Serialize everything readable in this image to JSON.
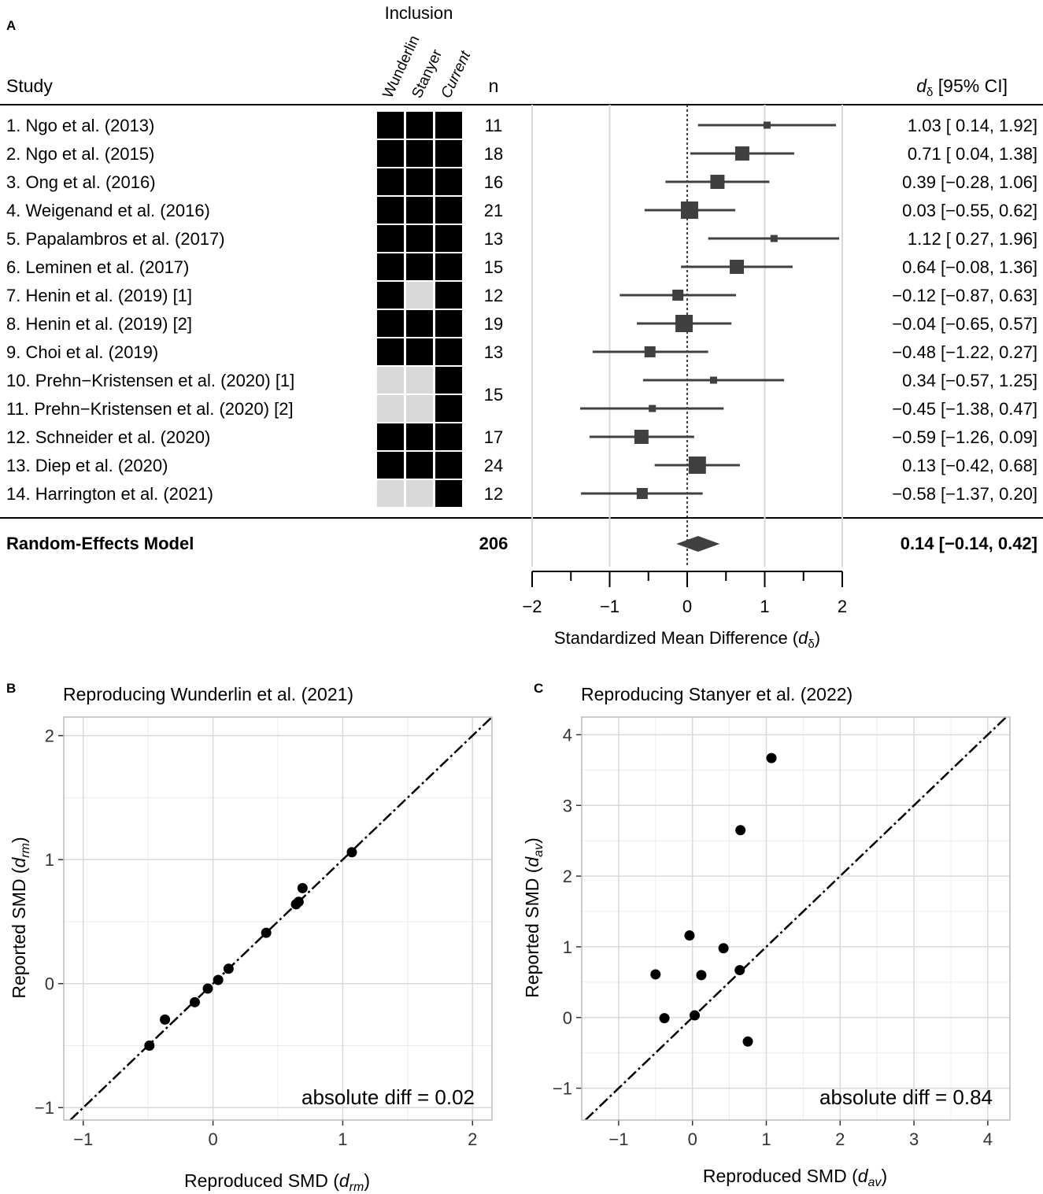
{
  "colors": {
    "mark": "#404040",
    "grid": "#d9d9d9",
    "excluded": "#d9d9d9",
    "included": "#000000"
  },
  "panel_a": {
    "label": "A",
    "inclusion_title": "Inclusion",
    "inclusion_columns": [
      "Wunderlin",
      "Stanyer",
      "Current"
    ],
    "study_header": "Study",
    "n_header": "n",
    "ci_header_main": "d",
    "ci_header_sub": "δ",
    "ci_header_rest": " [95% CI]",
    "model_label": "Random-Effects Model",
    "model_n": "206",
    "model_ci_text": "0.14 [−0.14, 0.42]",
    "xlabel_main": "Standardized Mean Difference (",
    "xlabel_sub": "δ",
    "xlabel_end": ")",
    "xlabel_var": "d",
    "ticks": [
      "−2",
      "−1",
      "0",
      "1",
      "2"
    ]
  },
  "chart_data": [
    {
      "type": "forest",
      "title": "",
      "xlabel": "Standardized Mean Difference (dδ)",
      "xlim": [
        -2,
        2
      ],
      "studies": [
        {
          "label": "1. Ngo et al. (2013)",
          "n": "11",
          "estimate": 1.03,
          "lower": 0.14,
          "upper": 1.92,
          "weight": 1,
          "inclusion": [
            1,
            1,
            1
          ],
          "ci_text": "1.03 [  0.14, 1.92]"
        },
        {
          "label": "2. Ngo et al. (2015)",
          "n": "18",
          "estimate": 0.71,
          "lower": 0.04,
          "upper": 1.38,
          "weight": 3,
          "inclusion": [
            1,
            1,
            1
          ],
          "ci_text": "0.71 [  0.04, 1.38]"
        },
        {
          "label": "3. Ong et al. (2016)",
          "n": "16",
          "estimate": 0.39,
          "lower": -0.28,
          "upper": 1.06,
          "weight": 3,
          "inclusion": [
            1,
            1,
            1
          ],
          "ci_text": "0.39 [−0.28, 1.06]"
        },
        {
          "label": "4. Weigenand et al. (2016)",
          "n": "21",
          "estimate": 0.03,
          "lower": -0.55,
          "upper": 0.62,
          "weight": 4,
          "inclusion": [
            1,
            1,
            1
          ],
          "ci_text": "0.03 [−0.55, 0.62]"
        },
        {
          "label": "5. Papalambros et al. (2017)",
          "n": "13",
          "estimate": 1.12,
          "lower": 0.27,
          "upper": 1.96,
          "weight": 1,
          "inclusion": [
            1,
            1,
            1
          ],
          "ci_text": "1.12 [  0.27, 1.96]"
        },
        {
          "label": "6. Leminen et al. (2017)",
          "n": "15",
          "estimate": 0.64,
          "lower": -0.08,
          "upper": 1.36,
          "weight": 3,
          "inclusion": [
            1,
            1,
            1
          ],
          "ci_text": "0.64 [−0.08, 1.36]"
        },
        {
          "label": "7. Henin et al. (2019) [1]",
          "n": "12",
          "estimate": -0.12,
          "lower": -0.87,
          "upper": 0.63,
          "weight": 2,
          "inclusion": [
            1,
            0,
            1
          ],
          "ci_text": "−0.12 [−0.87, 0.63]"
        },
        {
          "label": "8. Henin et al. (2019) [2]",
          "n": "19",
          "estimate": -0.04,
          "lower": -0.65,
          "upper": 0.57,
          "weight": 4,
          "inclusion": [
            1,
            1,
            1
          ],
          "ci_text": "−0.04 [−0.65, 0.57]"
        },
        {
          "label": "9. Choi et al. (2019)",
          "n": "13",
          "estimate": -0.48,
          "lower": -1.22,
          "upper": 0.27,
          "weight": 2,
          "inclusion": [
            1,
            1,
            1
          ],
          "ci_text": "−0.48 [−1.22, 0.27]"
        },
        {
          "label": "10. Prehn−Kristensen et al. (2020) [1]",
          "n": "",
          "estimate": 0.34,
          "lower": -0.57,
          "upper": 1.25,
          "weight": 1,
          "inclusion": [
            0,
            0,
            1
          ],
          "ci_text": "0.34 [−0.57, 1.25]"
        },
        {
          "label": "11. Prehn−Kristensen et al. (2020) [2]",
          "n": "",
          "estimate": -0.45,
          "lower": -1.38,
          "upper": 0.47,
          "weight": 1,
          "inclusion": [
            0,
            0,
            1
          ],
          "ci_text": "−0.45 [−1.38, 0.47]"
        },
        {
          "label": "12. Schneider et al. (2020)",
          "n": "17",
          "estimate": -0.59,
          "lower": -1.26,
          "upper": 0.09,
          "weight": 3,
          "inclusion": [
            1,
            1,
            1
          ],
          "ci_text": "−0.59 [−1.26, 0.09]"
        },
        {
          "label": "13. Diep et al. (2020)",
          "n": "24",
          "estimate": 0.13,
          "lower": -0.42,
          "upper": 0.68,
          "weight": 4,
          "inclusion": [
            1,
            1,
            1
          ],
          "ci_text": "0.13 [−0.42, 0.68]"
        },
        {
          "label": "14. Harrington et al. (2021)",
          "n": "12",
          "estimate": -0.58,
          "lower": -1.37,
          "upper": 0.2,
          "weight": 2,
          "inclusion": [
            0,
            0,
            1
          ],
          "ci_text": "−0.58 [−1.37, 0.20]"
        }
      ],
      "merged_n": {
        "rows": [
          9,
          10
        ],
        "value": "15"
      },
      "summary": {
        "estimate": 0.14,
        "lower": -0.14,
        "upper": 0.42
      }
    },
    {
      "type": "scatter",
      "label": "B",
      "title": "Reproducing Wunderlin et al. (2021)",
      "xlabel_main": "Reproduced SMD (",
      "xlabel_sub": "rm",
      "ylabel_main": "Reported SMD (",
      "ylabel_sub": "rm",
      "var": "d",
      "close": ")",
      "xlim": [
        -1.15,
        2.15
      ],
      "ylim": [
        -1.1,
        2.15
      ],
      "xticks": [
        -1,
        0,
        1,
        2
      ],
      "yticks": [
        -1,
        0,
        1,
        2
      ],
      "tick_labels_x": [
        "−1",
        "0",
        "1",
        "2"
      ],
      "tick_labels_y": [
        "−1",
        "0",
        "1",
        "2"
      ],
      "annotation": "absolute diff = 0.02",
      "points": [
        [
          1.07,
          1.06
        ],
        [
          0.69,
          0.77
        ],
        [
          0.66,
          0.66
        ],
        [
          0.64,
          0.64
        ],
        [
          0.41,
          0.41
        ],
        [
          0.12,
          0.12
        ],
        [
          0.04,
          0.03
        ],
        [
          -0.04,
          -0.04
        ],
        [
          -0.14,
          -0.15
        ],
        [
          -0.37,
          -0.29
        ],
        [
          -0.49,
          -0.5
        ]
      ],
      "reference_line": "y = x"
    },
    {
      "type": "scatter",
      "label": "C",
      "title": "Reproducing Stanyer et al. (2022)",
      "xlabel_main": "Reproduced SMD (",
      "xlabel_sub": "av",
      "ylabel_main": "Reported SMD (",
      "ylabel_sub": "av",
      "var": "d",
      "close": ")",
      "xlim": [
        -1.5,
        4.3
      ],
      "ylim": [
        -1.45,
        4.25
      ],
      "xticks": [
        -1,
        0,
        1,
        2,
        3,
        4
      ],
      "yticks": [
        -1,
        0,
        1,
        2,
        3,
        4
      ],
      "tick_labels_x": [
        "−1",
        "0",
        "1",
        "2",
        "3",
        "4"
      ],
      "tick_labels_y": [
        "−1",
        "0",
        "1",
        "2",
        "3",
        "4"
      ],
      "annotation": "absolute diff = 0.84",
      "points": [
        [
          1.07,
          3.67
        ],
        [
          0.65,
          2.65
        ],
        [
          -0.04,
          1.16
        ],
        [
          0.42,
          0.98
        ],
        [
          0.64,
          0.67
        ],
        [
          -0.5,
          0.61
        ],
        [
          0.12,
          0.6
        ],
        [
          0.03,
          0.03
        ],
        [
          -0.38,
          -0.01
        ],
        [
          0.75,
          -0.34
        ]
      ],
      "reference_line": "y = x"
    }
  ]
}
